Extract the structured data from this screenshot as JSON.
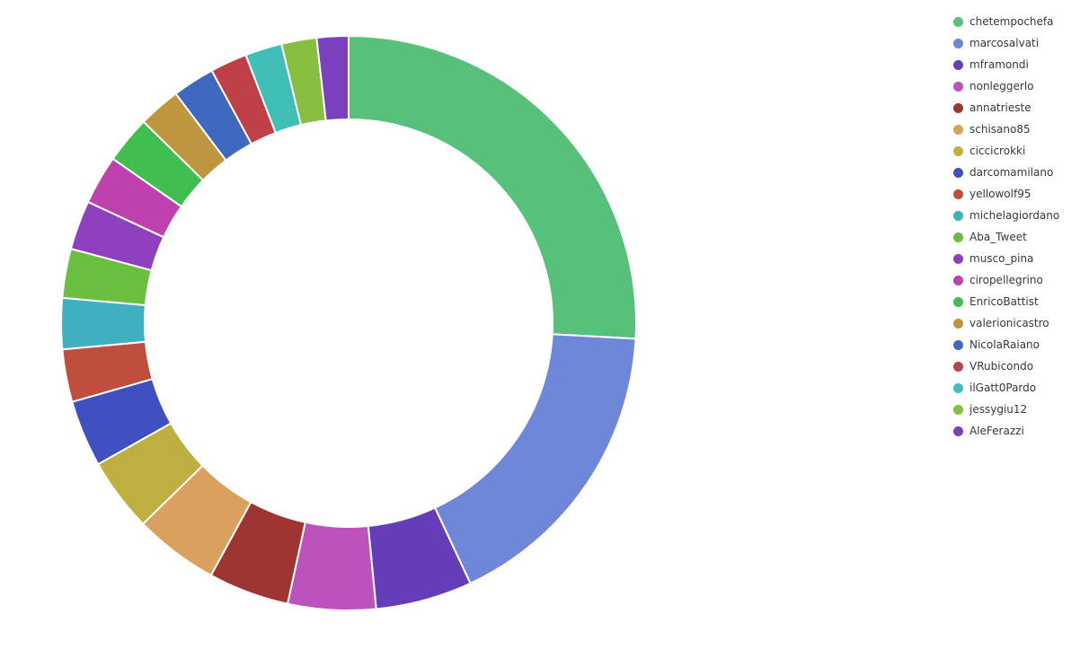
{
  "chart_data": {
    "type": "pie",
    "variant": "donut",
    "categories": [
      "chetempochefa",
      "marcosalvati",
      "mframondi",
      "nonleggerlo",
      "annatrieste",
      "schisano85",
      "ciccicrokki",
      "darcomamilano",
      "yellowolf95",
      "michelagiordano",
      "Aba_Tweet",
      "musco_pina",
      "ciropellegrino",
      "EnricoBattist",
      "valerionicastro",
      "NicolaRaiano",
      "VRubicondo",
      "ilGatt0Pardo",
      "jessygiu12",
      "AleFerazzi"
    ],
    "values": [
      26.2,
      17.4,
      5.5,
      5.0,
      4.6,
      4.8,
      4.2,
      3.8,
      3.0,
      2.9,
      2.8,
      2.8,
      2.8,
      2.7,
      2.4,
      2.4,
      2.1,
      2.1,
      2.0,
      1.8
    ],
    "colors": [
      "#57c17b",
      "#6f87d8",
      "#663db8",
      "#bc52bc",
      "#9e3533",
      "#daa05d",
      "#bfaf40",
      "#4050c0",
      "#bf4e3f",
      "#40afbf",
      "#6bbf40",
      "#8f40bf",
      "#bf40af",
      "#40bf50",
      "#bf9640",
      "#4068bf",
      "#bf4048",
      "#40bfb7",
      "#87bf40",
      "#7a40bf"
    ],
    "legend_position": "right"
  }
}
